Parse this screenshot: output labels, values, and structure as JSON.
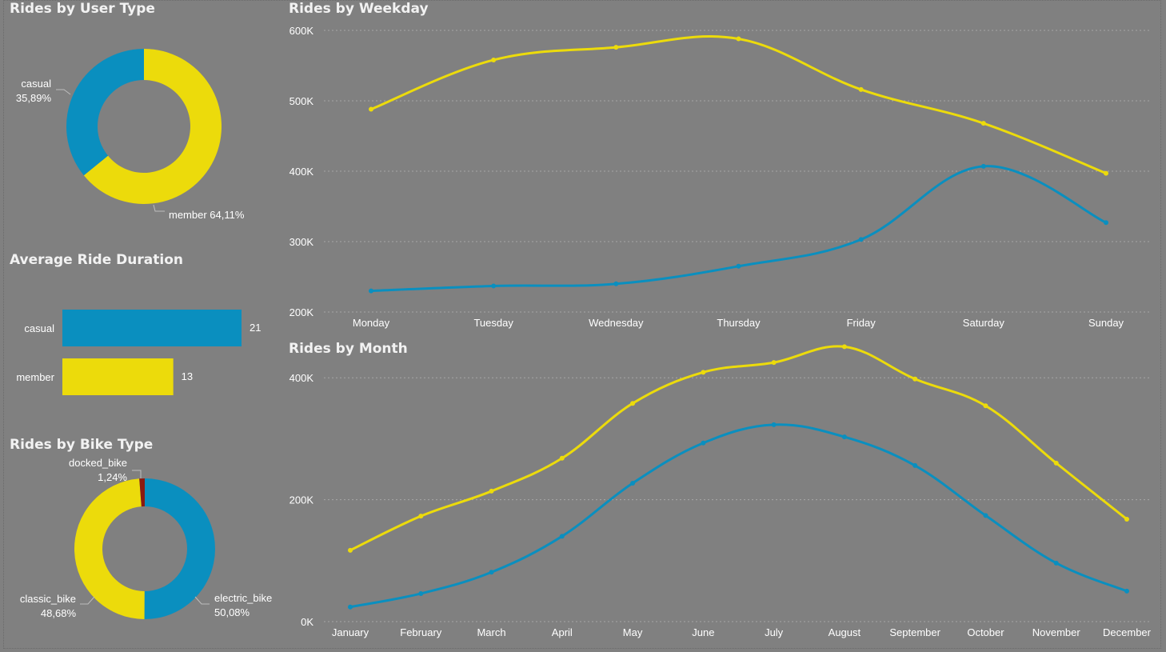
{
  "colors": {
    "casual": "#0a8fbf",
    "member": "#ecdb0b",
    "docked": "#8b1a10",
    "background": "#808080"
  },
  "chart_data": [
    {
      "type": "pie",
      "title": "Rides by User Type",
      "labels": [
        "casual",
        "member"
      ],
      "values": [
        35.89,
        64.11
      ],
      "value_labels": [
        "35,89%",
        "64,11%"
      ],
      "display_labels": [
        "casual 35,89%",
        "member 64,11%"
      ]
    },
    {
      "type": "bar",
      "title": "Average Ride Duration",
      "categories": [
        "casual",
        "member"
      ],
      "values": [
        21,
        13
      ],
      "value_labels": [
        "21",
        "13"
      ]
    },
    {
      "type": "pie",
      "title": "Rides by Bike Type",
      "labels": [
        "electric_bike",
        "classic_bike",
        "docked_bike"
      ],
      "values": [
        50.08,
        48.68,
        1.24
      ],
      "value_labels": [
        "50,08%",
        "48,68%",
        "1,24%"
      ]
    },
    {
      "type": "line",
      "title": "Rides by Weekday",
      "categories": [
        "Monday",
        "Tuesday",
        "Wednesday",
        "Thursday",
        "Friday",
        "Saturday",
        "Sunday"
      ],
      "ylim": [
        200000,
        600000
      ],
      "yticks": [
        200000,
        300000,
        400000,
        500000,
        600000
      ],
      "ytick_labels": [
        "200K",
        "300K",
        "400K",
        "500K",
        "600K"
      ],
      "grid": true,
      "series": [
        {
          "key": "member",
          "values": [
            488000,
            558000,
            576000,
            588000,
            516000,
            468000,
            397000
          ]
        },
        {
          "key": "casual",
          "values": [
            230000,
            237000,
            240000,
            265000,
            303000,
            407000,
            327000
          ]
        }
      ]
    },
    {
      "type": "line",
      "title": "Rides by Month",
      "categories": [
        "January",
        "February",
        "March",
        "April",
        "May",
        "June",
        "July",
        "August",
        "September",
        "October",
        "November",
        "December"
      ],
      "ylim": [
        0,
        500000
      ],
      "yticks": [
        0,
        200000,
        400000
      ],
      "ytick_labels": [
        "0K",
        "200K",
        "400K"
      ],
      "grid": true,
      "series": [
        {
          "key": "member",
          "values": [
            117000,
            173000,
            214000,
            268000,
            358000,
            409000,
            425000,
            451000,
            398000,
            354000,
            260000,
            168000
          ]
        },
        {
          "key": "casual",
          "values": [
            24000,
            46000,
            81000,
            140000,
            227000,
            293000,
            323000,
            303000,
            256000,
            174000,
            96000,
            50000
          ]
        }
      ]
    }
  ]
}
